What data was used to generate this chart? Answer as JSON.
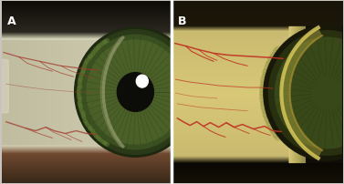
{
  "fig_width": 3.77,
  "fig_height": 2.02,
  "dpi": 100,
  "bg_color": "#c8c4c0",
  "label_A": "A",
  "label_B": "B",
  "label_color": "white",
  "label_fontsize": 9,
  "label_fontweight": "bold",
  "panelA": {
    "bg_dark_top": "#2a2820",
    "bg_dark_bottom": "#6a4830",
    "sclera": "#dcdcc0",
    "sclera_left": "#c8c4a8",
    "sclera_nasal": "#b8b898",
    "iris_outer": "#1e2810",
    "iris_mid": "#3a5020",
    "iris_inner": "#4a6828",
    "iris_bright": "#587830",
    "pupil": "#0c0c08",
    "vessel_color": "#a03828",
    "lens_arc": "#a0a878",
    "skin_bottom": "#704830",
    "left_glow": "#e0dcc8",
    "refl_white": "#f0f0f0"
  },
  "panelB": {
    "bg_dark": "#100c08",
    "top_lash": "#201808",
    "bottom_lash": "#181008",
    "sclera_bright": "#d8c878",
    "sclera_outer": "#c8b860",
    "sclera_inner_dark": "#908840",
    "iris_outer": "#202810",
    "iris_mid": "#384818",
    "iris_bright": "#4a6020",
    "shadow_dark": "#282010",
    "lens_arc_bright": "#d8c870",
    "lens_arc_dark": "#a89840",
    "vessel_color": "#c03020",
    "right_dark": "#151008"
  }
}
